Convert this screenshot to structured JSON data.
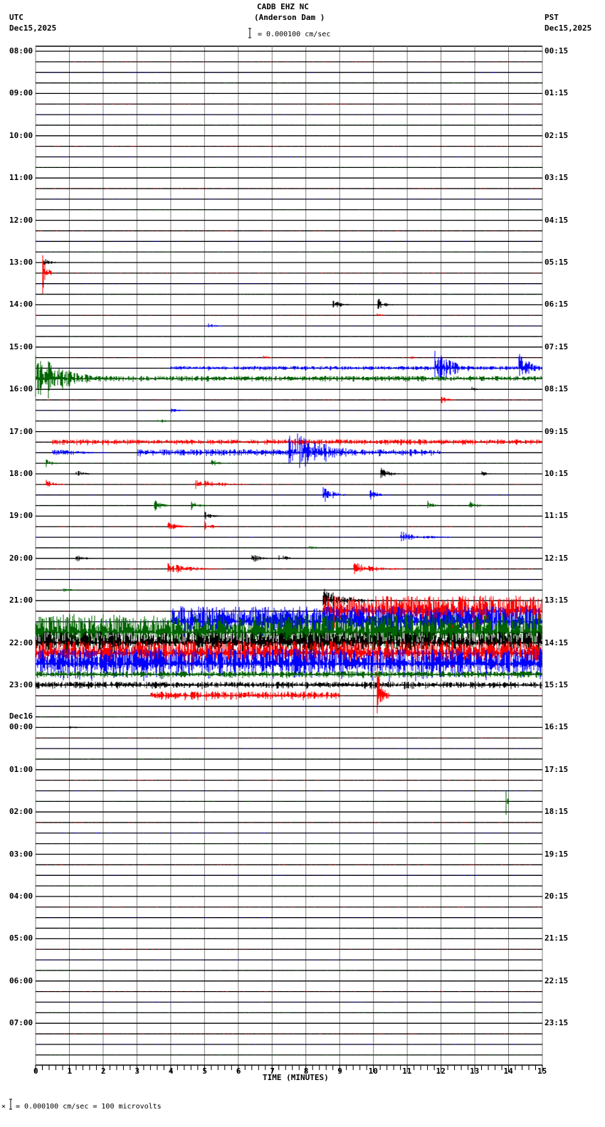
{
  "header": {
    "station": "CADB EHZ NC",
    "location": "(Anderson Dam )",
    "scale_text": "= 0.000100 cm/sec",
    "left_tz": "UTC",
    "left_date": "Dec15,2025",
    "right_tz": "PST",
    "right_date": "Dec15,2025"
  },
  "footer": {
    "xlabel": "TIME (MINUTES)",
    "scale_note": "= 0.000100 cm/sec =     100 microvolts",
    "scale_prefix": "×"
  },
  "left_labels": [
    "08:00",
    "09:00",
    "10:00",
    "11:00",
    "12:00",
    "13:00",
    "14:00",
    "15:00",
    "16:00",
    "17:00",
    "18:00",
    "19:00",
    "20:00",
    "21:00",
    "22:00",
    "23:00",
    "00:00",
    "01:00",
    "02:00",
    "03:00",
    "04:00",
    "05:00",
    "06:00",
    "07:00"
  ],
  "day_change_label": "Dec16",
  "right_labels": [
    "00:15",
    "01:15",
    "02:15",
    "03:15",
    "04:15",
    "05:15",
    "06:15",
    "07:15",
    "08:15",
    "09:15",
    "10:15",
    "11:15",
    "12:15",
    "13:15",
    "14:15",
    "15:15",
    "16:15",
    "17:15",
    "18:15",
    "19:15",
    "20:15",
    "21:15",
    "22:15",
    "23:15"
  ],
  "x_ticks": [
    "0",
    "1",
    "2",
    "3",
    "4",
    "5",
    "6",
    "7",
    "8",
    "9",
    "10",
    "11",
    "12",
    "13",
    "14",
    "15"
  ],
  "colors": {
    "trace_cycle": [
      "#000000",
      "#ff0000",
      "#0000ff",
      "#006400"
    ],
    "grid": "#808080"
  },
  "chart_data": {
    "type": "heatmap",
    "title": "CADB EHZ NC (Anderson Dam )",
    "subtitle": "Helicorder seismogram, 24 hours, 15-minute lines",
    "xlabel": "TIME (MINUTES)",
    "ylabel": "UTC (left) / PST (right)",
    "xlim": [
      0,
      15
    ],
    "rows_per_hour": 4,
    "total_rows": 96,
    "start_utc": "Dec15,2025 08:00",
    "start_pst": "Dec15,2025 00:15",
    "scale": "0.000100 cm/sec = 100 microvolts",
    "events": [
      {
        "row": 20,
        "min": 0.2,
        "dur": 0.5,
        "amp": 8
      },
      {
        "row": 21,
        "min": 0.2,
        "dur": 0.3,
        "amp": 30
      },
      {
        "row": 24,
        "min": 8.8,
        "dur": 0.5,
        "amp": 10
      },
      {
        "row": 24,
        "min": 10.1,
        "dur": 0.5,
        "amp": 12
      },
      {
        "row": 25,
        "min": 10.1,
        "dur": 0.4,
        "amp": 4
      },
      {
        "row": 26,
        "min": 5.1,
        "dur": 0.6,
        "amp": 4
      },
      {
        "row": 29,
        "min": 6.7,
        "dur": 0.4,
        "amp": 5
      },
      {
        "row": 29,
        "min": 11.1,
        "dur": 0.3,
        "amp": 4
      },
      {
        "row": 30,
        "min": 11.8,
        "dur": 1.3,
        "amp": 28
      },
      {
        "row": 30,
        "min": 14.3,
        "dur": 0.7,
        "amp": 30
      },
      {
        "row": 30,
        "min": 4.0,
        "dur": 11.0,
        "amp": 3
      },
      {
        "row": 31,
        "min": 0.0,
        "dur": 2.0,
        "amp": 40
      },
      {
        "row": 31,
        "min": 2.0,
        "dur": 13.0,
        "amp": 4
      },
      {
        "row": 32,
        "min": 12.9,
        "dur": 0.5,
        "amp": 4
      },
      {
        "row": 33,
        "min": 12.0,
        "dur": 0.5,
        "amp": 6
      },
      {
        "row": 34,
        "min": 4.0,
        "dur": 0.8,
        "amp": 3
      },
      {
        "row": 35,
        "min": 3.6,
        "dur": 0.6,
        "amp": 4
      },
      {
        "row": 37,
        "min": 0.5,
        "dur": 14.5,
        "amp": 4
      },
      {
        "row": 38,
        "min": 0.5,
        "dur": 2.0,
        "amp": 6
      },
      {
        "row": 38,
        "min": 7.5,
        "dur": 2.5,
        "amp": 35
      },
      {
        "row": 38,
        "min": 3.0,
        "dur": 9.0,
        "amp": 5
      },
      {
        "row": 39,
        "min": 5.2,
        "dur": 0.6,
        "amp": 6
      },
      {
        "row": 39,
        "min": 0.3,
        "dur": 0.5,
        "amp": 6
      },
      {
        "row": 40,
        "min": 1.2,
        "dur": 0.6,
        "amp": 6
      },
      {
        "row": 40,
        "min": 10.2,
        "dur": 0.6,
        "amp": 10
      },
      {
        "row": 40,
        "min": 13.2,
        "dur": 0.6,
        "amp": 4
      },
      {
        "row": 41,
        "min": 0.3,
        "dur": 0.6,
        "amp": 7
      },
      {
        "row": 41,
        "min": 4.7,
        "dur": 1.6,
        "amp": 10
      },
      {
        "row": 42,
        "min": 8.5,
        "dur": 0.7,
        "amp": 16
      },
      {
        "row": 42,
        "min": 9.9,
        "dur": 0.6,
        "amp": 9
      },
      {
        "row": 43,
        "min": 3.5,
        "dur": 0.6,
        "amp": 9
      },
      {
        "row": 43,
        "min": 4.6,
        "dur": 0.5,
        "amp": 9
      },
      {
        "row": 43,
        "min": 11.6,
        "dur": 0.4,
        "amp": 8
      },
      {
        "row": 43,
        "min": 12.8,
        "dur": 0.6,
        "amp": 8
      },
      {
        "row": 44,
        "min": 5.0,
        "dur": 0.6,
        "amp": 7
      },
      {
        "row": 45,
        "min": 3.9,
        "dur": 0.7,
        "amp": 10
      },
      {
        "row": 45,
        "min": 5.0,
        "dur": 0.5,
        "amp": 9
      },
      {
        "row": 46,
        "min": 10.8,
        "dur": 1.0,
        "amp": 10
      },
      {
        "row": 46,
        "min": 11.5,
        "dur": 1.4,
        "amp": 3
      },
      {
        "row": 47,
        "min": 8.1,
        "dur": 0.5,
        "amp": 4
      },
      {
        "row": 48,
        "min": 1.2,
        "dur": 0.5,
        "amp": 7
      },
      {
        "row": 48,
        "min": 6.4,
        "dur": 0.6,
        "amp": 8
      },
      {
        "row": 48,
        "min": 7.2,
        "dur": 0.6,
        "amp": 7
      },
      {
        "row": 49,
        "min": 3.9,
        "dur": 1.6,
        "amp": 9
      },
      {
        "row": 49,
        "min": 9.4,
        "dur": 1.5,
        "amp": 10
      },
      {
        "row": 51,
        "min": 0.8,
        "dur": 0.6,
        "amp": 4
      },
      {
        "row": 52,
        "min": 8.5,
        "dur": 1.5,
        "amp": 20
      },
      {
        "row": 53,
        "min": 8.5,
        "dur": 6.5,
        "amp": 22
      },
      {
        "row": 53,
        "min": 11.0,
        "dur": 1.0,
        "amp": 5
      },
      {
        "row": 54,
        "min": 4.0,
        "dur": 11.0,
        "amp": 22
      },
      {
        "row": 55,
        "min": 0.0,
        "dur": 15.0,
        "amp": 26
      },
      {
        "row": 56,
        "min": 0.0,
        "dur": 15.0,
        "amp": 16
      },
      {
        "row": 57,
        "min": 0.0,
        "dur": 15.0,
        "amp": 18
      },
      {
        "row": 58,
        "min": 0.0,
        "dur": 15.0,
        "amp": 22
      },
      {
        "row": 59,
        "min": 0.0,
        "dur": 15.0,
        "amp": 5
      },
      {
        "row": 60,
        "min": 0.0,
        "dur": 15.0,
        "amp": 5
      },
      {
        "row": 61,
        "min": 3.4,
        "dur": 5.6,
        "amp": 6
      },
      {
        "row": 61,
        "min": 10.1,
        "dur": 0.4,
        "amp": 40
      },
      {
        "row": 64,
        "min": 1.0,
        "dur": 1.0,
        "amp": 2
      },
      {
        "row": 71,
        "min": 13.9,
        "dur": 0.1,
        "amp": 50
      },
      {
        "row": 75,
        "min": 13.0,
        "dur": 0.6,
        "amp": 2
      }
    ]
  }
}
